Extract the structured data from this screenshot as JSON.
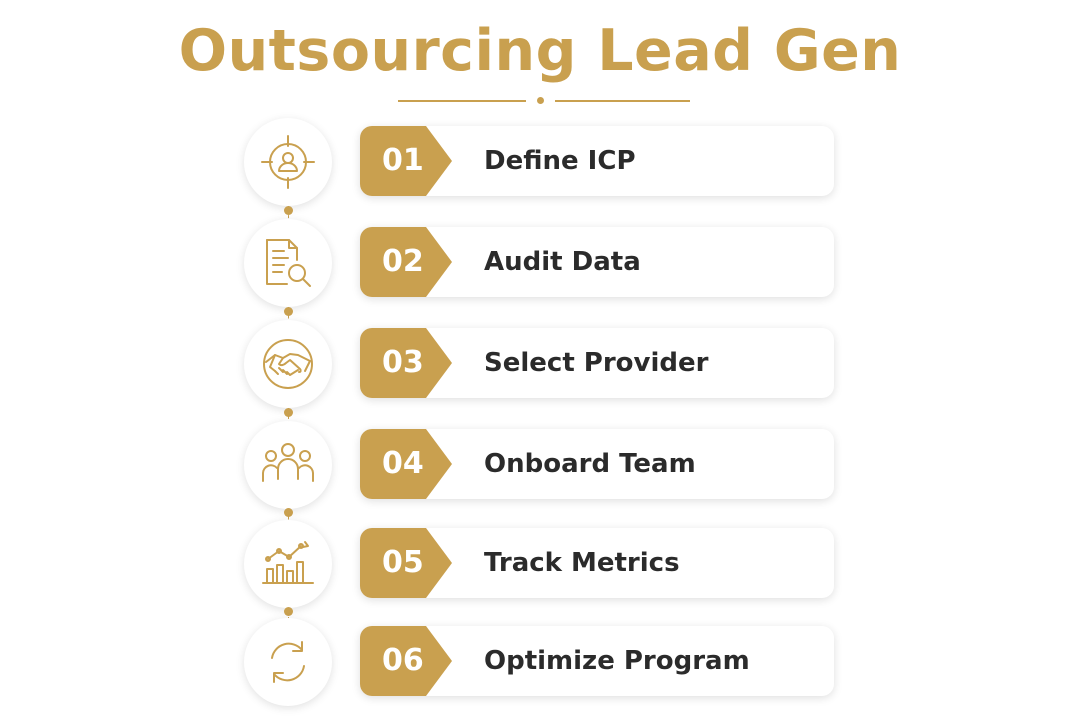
{
  "title": "Outsourcing Lead Gen",
  "accent_color": "#c9a04f",
  "steps": [
    {
      "number": "01",
      "label": "Define ICP",
      "icon": "target-user-icon"
    },
    {
      "number": "02",
      "label": "Audit Data",
      "icon": "document-search-icon"
    },
    {
      "number": "03",
      "label": "Select Provider",
      "icon": "handshake-icon"
    },
    {
      "number": "04",
      "label": "Onboard Team",
      "icon": "team-icon"
    },
    {
      "number": "05",
      "label": "Track Metrics",
      "icon": "bar-chart-icon"
    },
    {
      "number": "06",
      "label": "Optimize Program",
      "icon": "refresh-icon"
    }
  ]
}
